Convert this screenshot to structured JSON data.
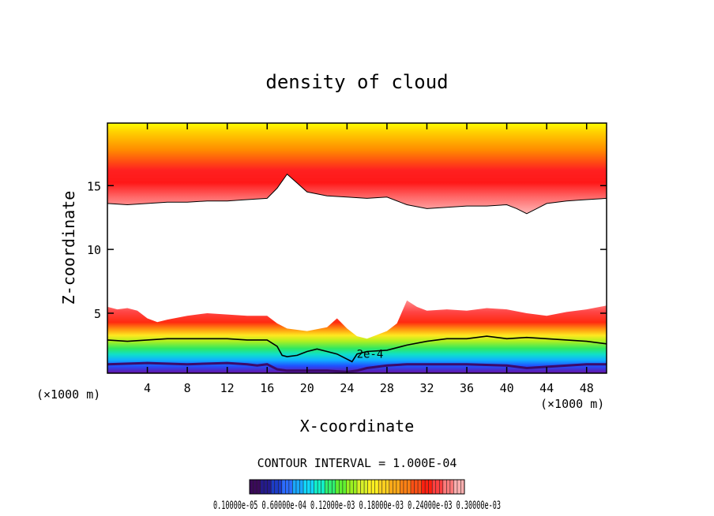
{
  "chart_data": {
    "type": "contour",
    "title": "density of cloud",
    "xlabel": "X-coordinate",
    "ylabel": "Z-coordinate",
    "x_unit_left": "(×1000 m)",
    "x_unit_right": "(×1000 m)",
    "xlim": [
      0,
      50
    ],
    "ylim": [
      0.3,
      19.9
    ],
    "x_ticks": [
      4,
      8,
      12,
      16,
      20,
      24,
      28,
      32,
      36,
      40,
      44,
      48
    ],
    "y_ticks": [
      5,
      10,
      15
    ],
    "contour_line_label": "2e-4",
    "contour_interval_text": "CONTOUR INTERVAL = 1.000E-04",
    "colorbar_labels_text": "0.10000e-05 0.60000e-04 0.12000e-03 0.18000e-03 0.24000e-03 0.30000e-03",
    "colorbar_colors": [
      "#3a0a5a",
      "#241a8c",
      "#1c3cc8",
      "#2c6cff",
      "#19a8ff",
      "#12d8ff",
      "#12f0c8",
      "#30f070",
      "#60f030",
      "#9cf020",
      "#d8f028",
      "#fff020",
      "#ffd020",
      "#ffaa18",
      "#ff8014",
      "#ff5014",
      "#ff2010",
      "#ff4040",
      "#ff7a7a",
      "#ffb0b0"
    ],
    "upper_layer_lower_boundary": {
      "x": [
        0,
        2,
        4,
        6,
        8,
        10,
        12,
        14,
        16,
        17,
        18,
        19,
        20,
        22,
        24,
        26,
        28,
        30,
        32,
        34,
        36,
        38,
        40,
        41,
        42,
        43,
        44,
        46,
        48,
        50
      ],
      "z": [
        13.6,
        13.5,
        13.6,
        13.7,
        13.7,
        13.8,
        13.8,
        13.9,
        14.0,
        14.8,
        15.9,
        15.2,
        14.5,
        14.2,
        14.1,
        14.0,
        14.1,
        13.5,
        13.2,
        13.3,
        13.4,
        13.4,
        13.5,
        13.2,
        12.8,
        13.2,
        13.6,
        13.8,
        13.9,
        14.0
      ]
    },
    "lower_layer_upper_boundary": {
      "x": [
        0,
        1,
        2,
        3,
        4,
        5,
        6,
        8,
        10,
        12,
        14,
        16,
        17,
        18,
        20,
        22,
        23,
        24,
        25,
        26,
        28,
        29,
        30,
        31,
        32,
        34,
        36,
        38,
        40,
        42,
        44,
        46,
        48,
        50
      ],
      "z": [
        5.5,
        5.3,
        5.4,
        5.2,
        4.6,
        4.3,
        4.5,
        4.8,
        5.0,
        4.9,
        4.8,
        4.8,
        4.2,
        3.8,
        3.6,
        3.9,
        4.6,
        3.8,
        3.2,
        3.0,
        3.6,
        4.2,
        6.0,
        5.5,
        5.2,
        5.3,
        5.2,
        5.4,
        5.3,
        5.0,
        4.8,
        5.1,
        5.3,
        5.6
      ]
    },
    "contour_2e4": {
      "x": [
        0,
        2,
        4,
        6,
        8,
        10,
        12,
        14,
        16,
        17,
        17.5,
        18,
        19,
        20,
        21,
        22,
        23,
        24,
        24.5,
        25,
        26,
        28,
        30,
        32,
        34,
        36,
        38,
        40,
        42,
        44,
        46,
        48,
        50
      ],
      "z": [
        2.9,
        2.8,
        2.9,
        3.0,
        3.0,
        3.0,
        3.0,
        2.9,
        2.9,
        2.4,
        1.7,
        1.6,
        1.7,
        2.0,
        2.2,
        2.0,
        1.8,
        1.4,
        1.2,
        1.8,
        2.0,
        2.1,
        2.5,
        2.8,
        3.0,
        3.0,
        3.2,
        3.0,
        3.1,
        3.0,
        2.9,
        2.8,
        2.6
      ]
    },
    "lower_cloud_base": {
      "x": [
        0,
        4,
        8,
        12,
        14,
        15,
        16,
        17,
        18,
        20,
        22,
        24,
        25,
        26,
        28,
        30,
        32,
        36,
        40,
        42,
        44,
        48,
        50
      ],
      "z": [
        1.0,
        1.1,
        1.0,
        1.1,
        1.0,
        0.9,
        1.0,
        0.6,
        0.5,
        0.5,
        0.5,
        0.4,
        0.5,
        0.7,
        0.9,
        1.0,
        1.0,
        1.0,
        0.9,
        0.7,
        0.8,
        1.0,
        1.0
      ]
    }
  }
}
